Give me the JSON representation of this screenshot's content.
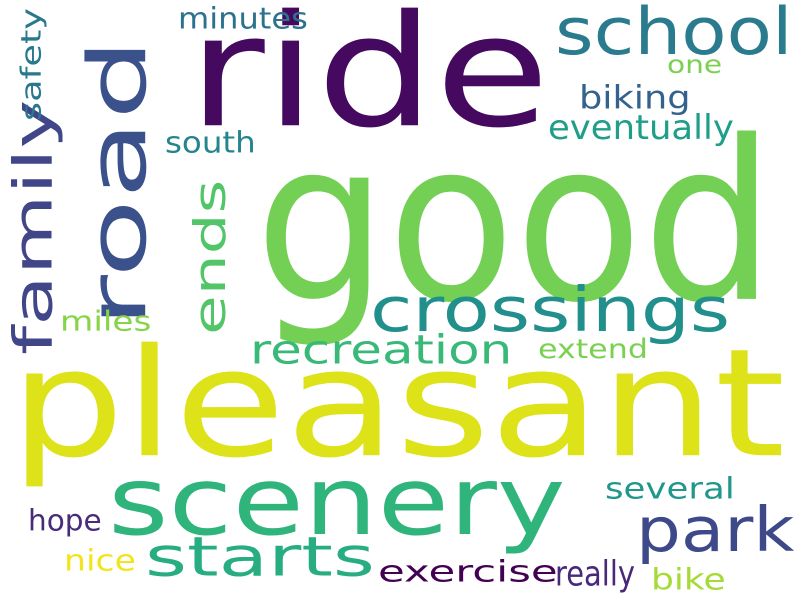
{
  "words": [
    {
      "text": "good",
      "color": "#74d055"
    },
    {
      "text": "pleasant",
      "color": "#dde318"
    },
    {
      "text": "ride",
      "color": "#450a5f"
    },
    {
      "text": "scenery",
      "color": "#2fb47c"
    },
    {
      "text": "road",
      "color": "#3b518b"
    },
    {
      "text": "crossings",
      "color": "#21908d"
    },
    {
      "text": "school",
      "color": "#2a7b8e"
    },
    {
      "text": "park",
      "color": "#3e4989"
    },
    {
      "text": "starts",
      "color": "#27ad81"
    },
    {
      "text": "family",
      "color": "#404688"
    },
    {
      "text": "ends",
      "color": "#52c569"
    },
    {
      "text": "recreation",
      "color": "#38b977"
    },
    {
      "text": "minutes",
      "color": "#2c728e"
    },
    {
      "text": "biking",
      "color": "#33638d"
    },
    {
      "text": "eventually",
      "color": "#1f9e89"
    },
    {
      "text": "south",
      "color": "#25858e"
    },
    {
      "text": "safety",
      "color": "#2a788e"
    },
    {
      "text": "one",
      "color": "#7ad151"
    },
    {
      "text": "miles",
      "color": "#86d549"
    },
    {
      "text": "extend",
      "color": "#7ad151"
    },
    {
      "text": "several",
      "color": "#1f988b"
    },
    {
      "text": "hope",
      "color": "#472c7a"
    },
    {
      "text": "nice",
      "color": "#f1e51d"
    },
    {
      "text": "exercise",
      "color": "#440154"
    },
    {
      "text": "really",
      "color": "#482878"
    },
    {
      "text": "bike",
      "color": "#a5db36"
    }
  ]
}
